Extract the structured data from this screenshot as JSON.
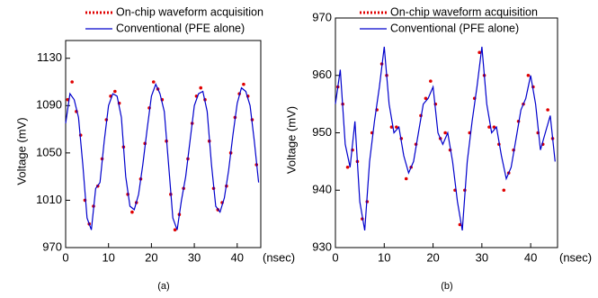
{
  "chart_data": [
    {
      "type": "line",
      "caption": "(a)",
      "y_label": "Voltage (mV)",
      "x_unit": "(nsec)",
      "xlim": [
        0,
        45.5
      ],
      "xticks": [
        0,
        10,
        20,
        30,
        40
      ],
      "ylim": [
        970,
        1145
      ],
      "yticks": [
        970,
        1010,
        1050,
        1090,
        1130
      ],
      "series": [
        {
          "name": "On-chip waveform acquisition",
          "color": "#e00000",
          "style": "dotted",
          "x": [
            0.5,
            1.5,
            2.5,
            3.5,
            4.5,
            5.5,
            6.5,
            7.5,
            8.5,
            9.5,
            10.5,
            11.5,
            12.5,
            13.5,
            14.5,
            15.5,
            16.5,
            17.5,
            18.5,
            19.5,
            20.5,
            21.5,
            22.5,
            23.5,
            24.5,
            25.5,
            26.5,
            27.5,
            28.5,
            29.5,
            30.5,
            31.5,
            32.5,
            33.5,
            34.5,
            35.5,
            36.5,
            37.5,
            38.5,
            39.5,
            40.5,
            41.5,
            42.5,
            43.5,
            44.5
          ],
          "values": [
            1095,
            1110,
            1085,
            1065,
            1010,
            990,
            1005,
            1022,
            1045,
            1078,
            1098,
            1102,
            1092,
            1055,
            1015,
            1000,
            1008,
            1028,
            1058,
            1088,
            1110,
            1104,
            1095,
            1060,
            1015,
            985,
            998,
            1020,
            1045,
            1075,
            1098,
            1105,
            1095,
            1060,
            1020,
            1002,
            1008,
            1022,
            1050,
            1080,
            1100,
            1108,
            1098,
            1078,
            1040
          ]
        },
        {
          "name": "Conventional (PFE alone)",
          "color": "#0000cc",
          "style": "solid",
          "x": [
            0,
            1,
            2,
            3,
            4,
            5,
            6,
            7,
            8,
            9,
            10,
            11,
            12,
            13,
            14,
            15,
            16,
            17,
            18,
            19,
            20,
            21,
            22,
            23,
            24,
            25,
            26,
            27,
            28,
            29,
            30,
            31,
            32,
            33,
            34,
            35,
            36,
            37,
            38,
            39,
            40,
            41,
            42,
            43,
            44,
            45
          ],
          "values": [
            1075,
            1100,
            1095,
            1080,
            1040,
            995,
            985,
            1020,
            1025,
            1060,
            1090,
            1100,
            1098,
            1080,
            1030,
            1005,
            1002,
            1015,
            1040,
            1070,
            1098,
            1108,
            1100,
            1085,
            1040,
            995,
            985,
            1010,
            1030,
            1060,
            1090,
            1100,
            1102,
            1085,
            1040,
            1005,
            1000,
            1012,
            1035,
            1065,
            1092,
            1105,
            1102,
            1090,
            1060,
            1025
          ]
        }
      ]
    },
    {
      "type": "line",
      "caption": "(b)",
      "y_label": "Voltage (mV)",
      "x_unit": "(nsec)",
      "xlim": [
        0,
        45.5
      ],
      "xticks": [
        0,
        10,
        20,
        30,
        40
      ],
      "ylim": [
        930,
        970
      ],
      "yticks": [
        930,
        940,
        950,
        960,
        970
      ],
      "series": [
        {
          "name": "On-chip waveform acquisition",
          "color": "#e00000",
          "style": "dotted",
          "x": [
            0.5,
            1.5,
            2.5,
            3.5,
            4.5,
            5.5,
            6.5,
            7.5,
            8.5,
            9.5,
            10.5,
            11.5,
            12.5,
            13.5,
            14.5,
            15.5,
            16.5,
            17.5,
            18.5,
            19.5,
            20.5,
            21.5,
            22.5,
            23.5,
            24.5,
            25.5,
            26.5,
            27.5,
            28.5,
            29.5,
            30.5,
            31.5,
            32.5,
            33.5,
            34.5,
            35.5,
            36.5,
            37.5,
            38.5,
            39.5,
            40.5,
            41.5,
            42.5,
            43.5,
            44.5
          ],
          "values": [
            958,
            955,
            944,
            947,
            945,
            935,
            938,
            950,
            954,
            962,
            960,
            951,
            951,
            949,
            942,
            944,
            948,
            953,
            956,
            959,
            955,
            949,
            950,
            947,
            940,
            934,
            940,
            950,
            956,
            964,
            960,
            951,
            951,
            948,
            940,
            943,
            947,
            952,
            955,
            960,
            958,
            950,
            948,
            954,
            949
          ]
        },
        {
          "name": "Conventional (PFE alone)",
          "color": "#0000cc",
          "style": "solid",
          "x": [
            0,
            1,
            2,
            3,
            4,
            5,
            6,
            7,
            8,
            9,
            10,
            11,
            12,
            13,
            14,
            15,
            16,
            17,
            18,
            19,
            20,
            21,
            22,
            23,
            24,
            25,
            26,
            27,
            28,
            29,
            30,
            31,
            32,
            33,
            34,
            35,
            36,
            37,
            38,
            39,
            40,
            41,
            42,
            43,
            44,
            45
          ],
          "values": [
            955,
            961,
            948,
            944,
            952,
            938,
            933,
            945,
            952,
            958,
            965,
            955,
            950,
            951,
            946,
            943,
            945,
            950,
            955,
            956,
            958,
            950,
            948,
            950,
            945,
            938,
            933,
            945,
            952,
            958,
            965,
            955,
            950,
            951,
            946,
            942,
            944,
            949,
            954,
            956,
            960,
            955,
            947,
            950,
            953,
            945
          ]
        }
      ]
    }
  ]
}
